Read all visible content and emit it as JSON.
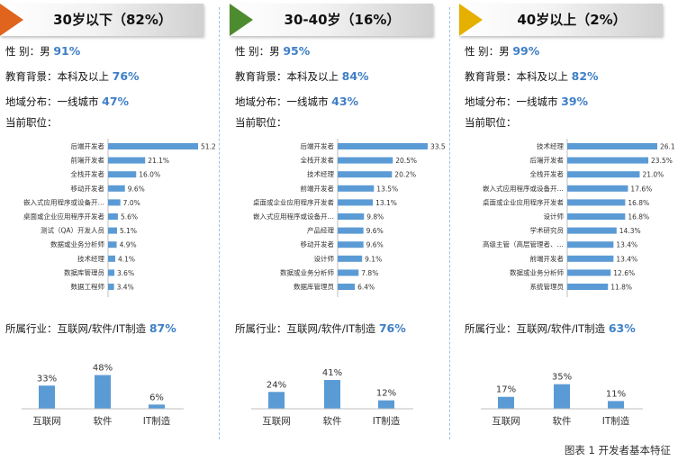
{
  "panels": [
    {
      "title": "30岁以下（82%）",
      "accent": "#e0631e",
      "gender_label": "性    别：男",
      "gender_pct": "91%",
      "edu_label": "教育背景：本科及以上",
      "edu_pct": "76%",
      "region_label": "地域分布：一线城市",
      "region_pct": "47%",
      "role_label": "当前职位：",
      "industry_label": "所属行业：互联网/软件/IT制造",
      "industry_pct": "87%"
    },
    {
      "title": "30-40岁（16%）",
      "accent": "#4d8c2e",
      "gender_label": "性    别：男",
      "gender_pct": "95%",
      "edu_label": "教育背景：本科及以上",
      "edu_pct": "84%",
      "region_label": "地域分布：一线城市",
      "region_pct": "43%",
      "role_label": "当前职位：",
      "industry_label": "所属行业：互联网/软件/IT制造",
      "industry_pct": "76%"
    },
    {
      "title": "40岁以上（2%）",
      "accent": "#e6b000",
      "gender_label": "性    别：男",
      "gender_pct": "99%",
      "edu_label": "教育背景：本科及以上",
      "edu_pct": "82%",
      "region_label": "地域分布：一线城市",
      "region_pct": "39%",
      "role_label": "当前职位：",
      "industry_label": "所属行业：互联网/软件/IT制造",
      "industry_pct": "63%"
    }
  ],
  "caption": "图表 1 开发者基本特征",
  "bar_color": "#5b9bd5",
  "chart_data": [
    {
      "type": "bar",
      "orientation": "horizontal",
      "categories": [
        "后端开发者",
        "前端开发者",
        "全栈开发者",
        "移动开发者",
        "嵌入式应用程序或设备开…",
        "桌面或企业应用程序开发者",
        "测试（QA）开发人员",
        "数据或业务分析师",
        "技术经理",
        "数据库管理员",
        "数据工程师"
      ],
      "values": [
        51.2,
        21.1,
        16.0,
        9.6,
        7.0,
        5.6,
        5.1,
        4.9,
        4.1,
        3.6,
        3.4
      ],
      "value_labels": [
        "51.2%",
        "21.1%",
        "16.0%",
        "9.6%",
        "7.0%",
        "5.6%",
        "5.1%",
        "4.9%",
        "4.1%",
        "3.6%",
        "3.4%"
      ]
    },
    {
      "type": "bar",
      "orientation": "horizontal",
      "categories": [
        "后端开发者",
        "全栈开发者",
        "技术经理",
        "前端开发者",
        "桌面或企业应用程序开发者",
        "嵌入式应用程序或设备开…",
        "产品经理",
        "移动开发者",
        "设计师",
        "数据或业务分析师",
        "数据库管理员"
      ],
      "values": [
        33.5,
        20.5,
        20.2,
        13.5,
        13.1,
        9.8,
        9.6,
        9.6,
        9.1,
        7.8,
        6.4
      ],
      "value_labels": [
        "33.5%",
        "20.5%",
        "20.2%",
        "13.5%",
        "13.1%",
        "9.8%",
        "9.6%",
        "9.6%",
        "9.1%",
        "7.8%",
        "6.4%"
      ]
    },
    {
      "type": "bar",
      "orientation": "horizontal",
      "categories": [
        "技术经理",
        "后端开发者",
        "全栈开发者",
        "嵌入式应用程序或设备开…",
        "桌面或企业应用程序开发者",
        "设计师",
        "学术研究员",
        "高级主管（高层管理者、…",
        "前端开发者",
        "数据或业务分析师",
        "系统管理员"
      ],
      "values": [
        26.1,
        23.5,
        21.0,
        17.6,
        16.8,
        16.8,
        14.3,
        13.4,
        13.4,
        12.6,
        11.8
      ],
      "value_labels": [
        "26.1%",
        "23.5%",
        "21.0%",
        "17.6%",
        "16.8%",
        "16.8%",
        "14.3%",
        "13.4%",
        "13.4%",
        "12.6%",
        "11.8%"
      ]
    },
    {
      "type": "bar",
      "categories": [
        "互联网",
        "软件",
        "IT制造"
      ],
      "values": [
        33,
        48,
        6
      ],
      "value_labels": [
        "33%",
        "48%",
        "6%"
      ]
    },
    {
      "type": "bar",
      "categories": [
        "互联网",
        "软件",
        "IT制造"
      ],
      "values": [
        24,
        41,
        12
      ],
      "value_labels": [
        "24%",
        "41%",
        "12%"
      ]
    },
    {
      "type": "bar",
      "categories": [
        "互联网",
        "软件",
        "IT制造"
      ],
      "values": [
        17,
        35,
        11
      ],
      "value_labels": [
        "17%",
        "35%",
        "11%"
      ]
    }
  ]
}
